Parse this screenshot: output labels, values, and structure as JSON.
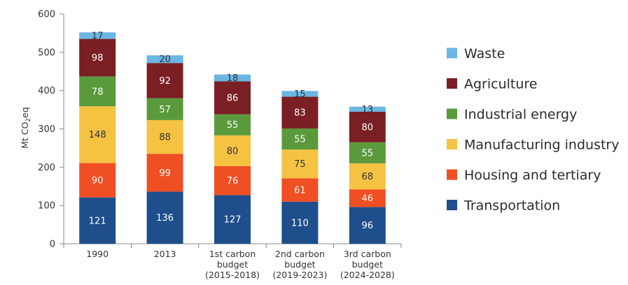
{
  "chart_data": {
    "type": "bar",
    "stacked": true,
    "ylabel": "Mt CO2eq",
    "ylim": [
      0,
      600
    ],
    "yticks": [
      0,
      100,
      200,
      300,
      400,
      500,
      600
    ],
    "grid": false,
    "legend_position": "right",
    "categories": [
      [
        "1990"
      ],
      [
        "2013"
      ],
      [
        "1st carbon",
        "budget",
        "(2015-2018)"
      ],
      [
        "2nd carbon",
        "budget",
        "(2019-2023)"
      ],
      [
        "3rd carbon",
        "budget",
        "(2024-2028)"
      ]
    ],
    "series": [
      {
        "name": "Transportation",
        "color": "#1f4e8c",
        "label_color": "#ffffff",
        "values": [
          121,
          136,
          127,
          110,
          96
        ]
      },
      {
        "name": "Housing and tertiary",
        "color": "#f04e23",
        "label_color": "#ffffff",
        "values": [
          90,
          99,
          76,
          61,
          46
        ]
      },
      {
        "name": "Manufacturing industry",
        "color": "#f5c242",
        "label_color": "#333333",
        "values": [
          148,
          88,
          80,
          75,
          68
        ]
      },
      {
        "name": "Industrial energy",
        "color": "#5a9a3c",
        "label_color": "#ffffff",
        "values": [
          78,
          57,
          55,
          55,
          55
        ]
      },
      {
        "name": "Agriculture",
        "color": "#7a1f24",
        "label_color": "#ffffff",
        "values": [
          98,
          92,
          86,
          83,
          80
        ]
      },
      {
        "name": "Waste",
        "color": "#6bb6e3",
        "label_color": "#333333",
        "values": [
          17,
          20,
          18,
          15,
          13
        ]
      }
    ]
  }
}
